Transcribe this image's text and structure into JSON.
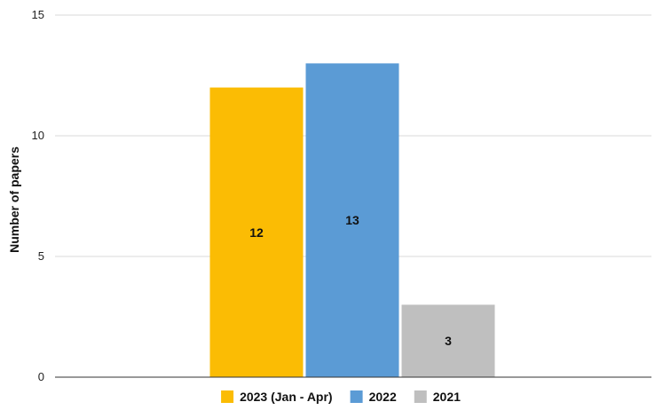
{
  "chart_data": {
    "type": "bar",
    "ylabel": "Number of papers",
    "xlabel": "",
    "ylim": [
      0,
      15
    ],
    "yticks": [
      0,
      5,
      10,
      15
    ],
    "grid": true,
    "legend_position": "bottom",
    "series": [
      {
        "name": "2023 (Jan - Apr)",
        "values": [
          12
        ],
        "color": "#FBBC04"
      },
      {
        "name": "2022",
        "values": [
          13
        ],
        "color": "#5B9BD5"
      },
      {
        "name": "2021",
        "values": [
          3
        ],
        "color": "#BFBFBF"
      }
    ]
  }
}
